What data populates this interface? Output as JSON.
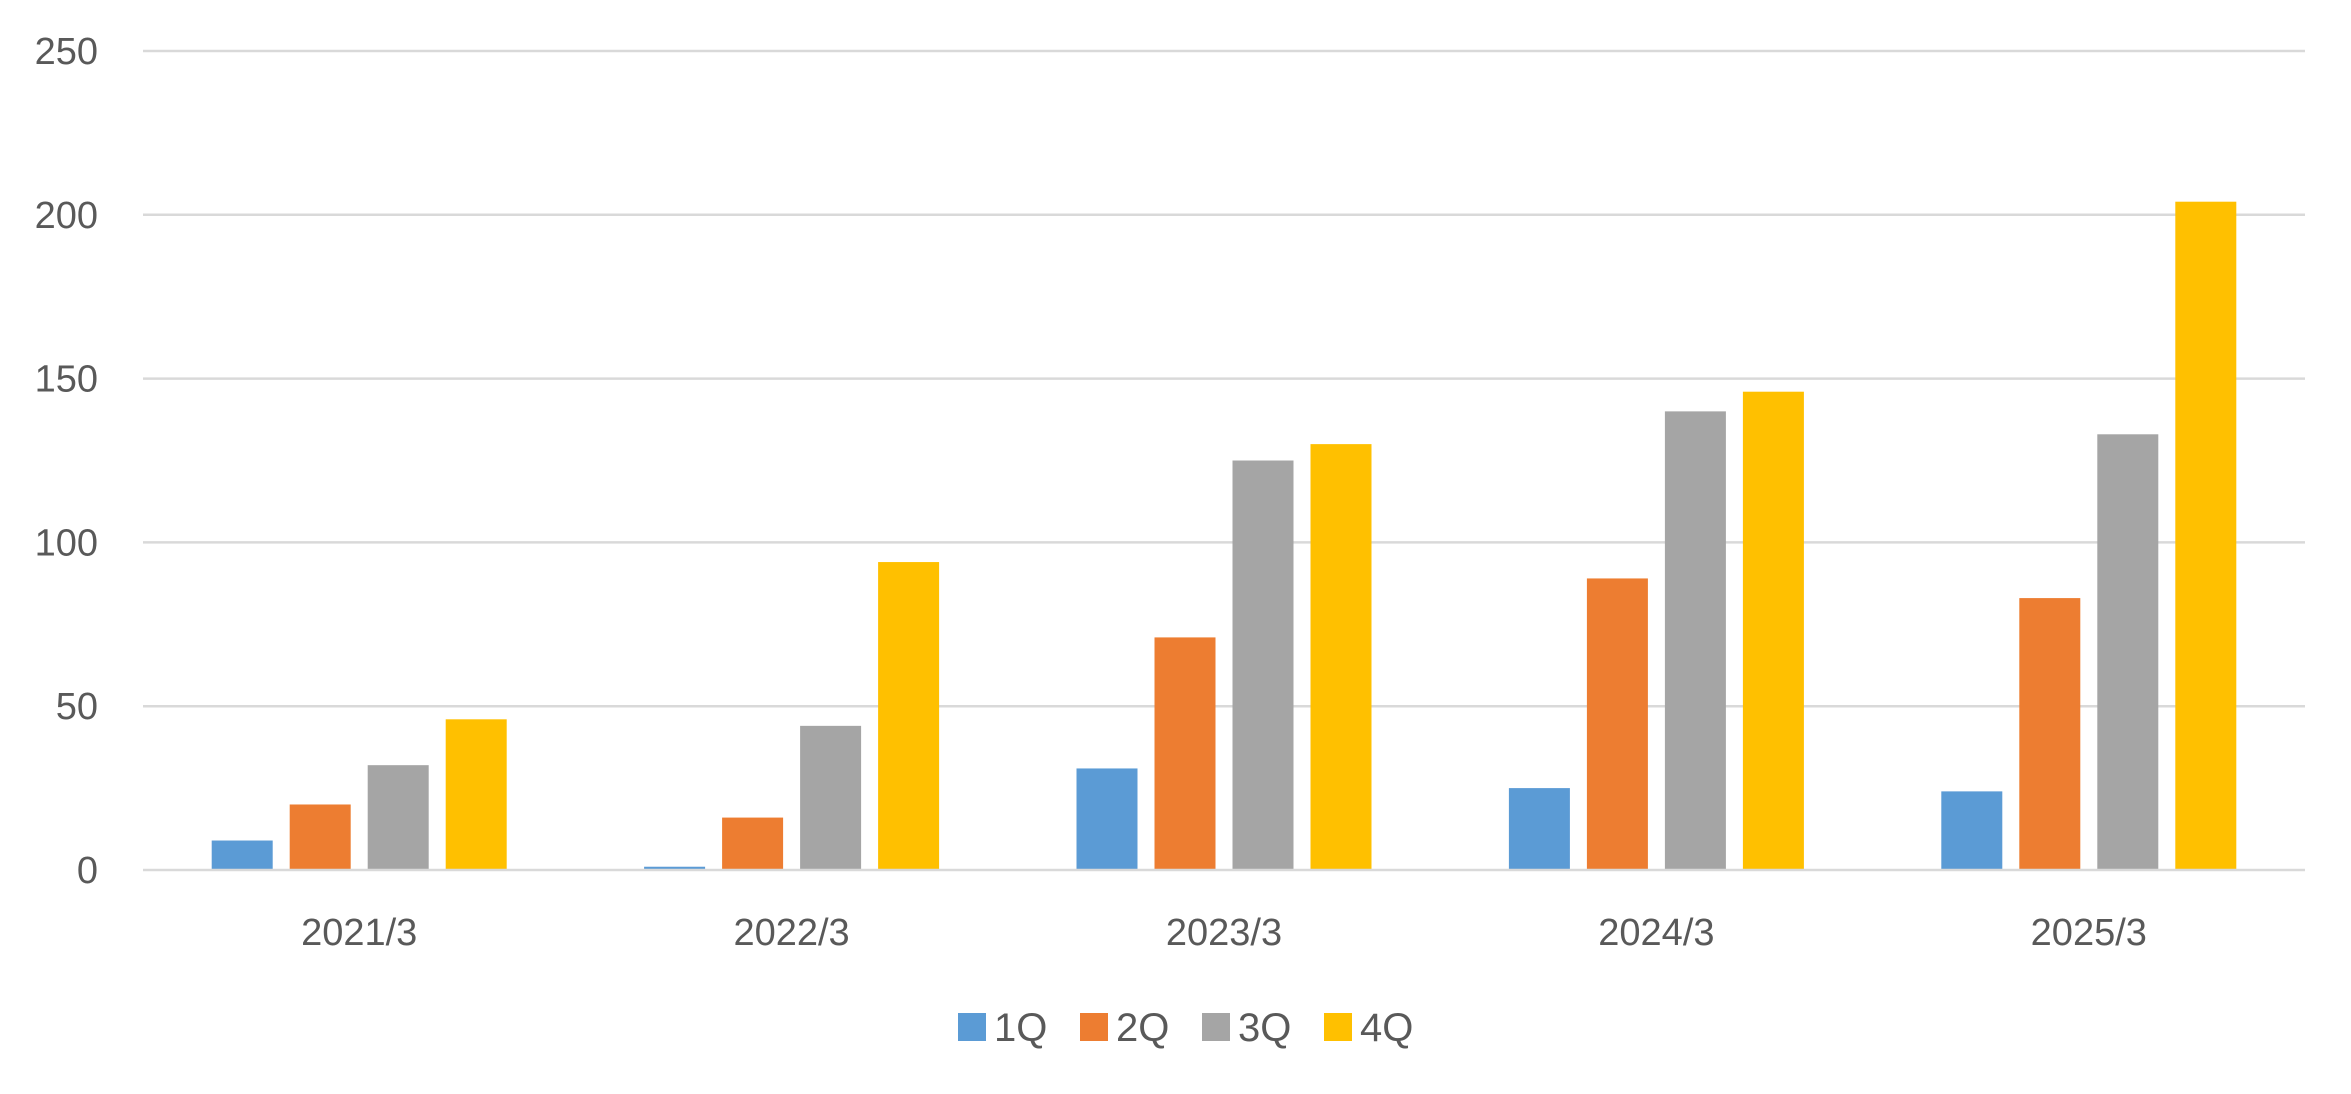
{
  "chart_data": {
    "type": "bar",
    "title": "",
    "xlabel": "",
    "ylabel": "",
    "categories": [
      "2021/3",
      "2022/3",
      "2023/3",
      "2024/3",
      "2025/3"
    ],
    "series": [
      {
        "name": "1Q",
        "color": "#5b9bd5",
        "values": [
          9,
          1,
          31,
          25,
          24
        ]
      },
      {
        "name": "2Q",
        "color": "#ed7d31",
        "values": [
          20,
          16,
          71,
          89,
          83
        ]
      },
      {
        "name": "3Q",
        "color": "#a5a5a5",
        "values": [
          32,
          44,
          125,
          140,
          133
        ]
      },
      {
        "name": "4Q",
        "color": "#ffc000",
        "values": [
          46,
          94,
          130,
          146,
          204
        ]
      }
    ],
    "ylim": [
      0,
      250
    ],
    "yticks": [
      0,
      50,
      100,
      150,
      200,
      250
    ],
    "grid": true,
    "legend_position": "bottom"
  }
}
